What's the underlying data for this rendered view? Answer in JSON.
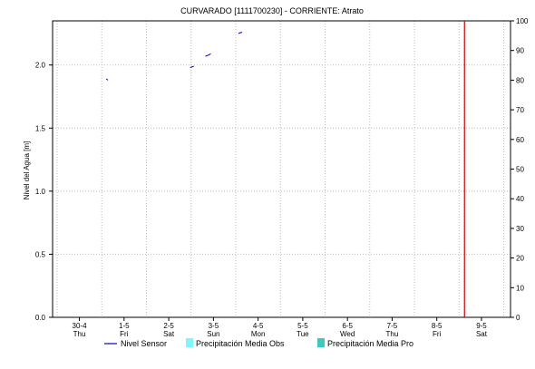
{
  "chart_data": {
    "type": "line",
    "title": "CURVARADO [1111700230] - CORRIENTE: Atrato",
    "ylabel_left": "Nivel del Agua [m]",
    "ylim_left": [
      0,
      2.35
    ],
    "ylim_right": [
      0,
      100
    ],
    "yticks_left": [
      {
        "value": 0.0,
        "label": "0.0"
      },
      {
        "value": 0.5,
        "label": "0.5"
      },
      {
        "value": 1.0,
        "label": "1.0"
      },
      {
        "value": 1.5,
        "label": "1.5"
      },
      {
        "value": 2.0,
        "label": "2.0"
      }
    ],
    "yticks_right": [
      {
        "value": 0,
        "label": "0"
      },
      {
        "value": 10,
        "label": "10"
      },
      {
        "value": 20,
        "label": "20"
      },
      {
        "value": 30,
        "label": "30"
      },
      {
        "value": 40,
        "label": "40"
      },
      {
        "value": 50,
        "label": "50"
      },
      {
        "value": 60,
        "label": "60"
      },
      {
        "value": 70,
        "label": "70"
      },
      {
        "value": 80,
        "label": "80"
      },
      {
        "value": 90,
        "label": "90"
      },
      {
        "value": 100,
        "label": "100"
      }
    ],
    "xlim_days": [
      -0.6,
      9.65
    ],
    "xticks": [
      {
        "day": 0,
        "label1": "30-4",
        "label2": "Thu"
      },
      {
        "day": 1,
        "label1": "1-5",
        "label2": "Fri"
      },
      {
        "day": 2,
        "label1": "2-5",
        "label2": "Sat"
      },
      {
        "day": 3,
        "label1": "3-5",
        "label2": "Sun"
      },
      {
        "day": 4,
        "label1": "4-5",
        "label2": "Mon"
      },
      {
        "day": 5,
        "label1": "5-5",
        "label2": "Tue"
      },
      {
        "day": 6,
        "label1": "6-5",
        "label2": "Wed"
      },
      {
        "day": 7,
        "label1": "7-5",
        "label2": "Thu"
      },
      {
        "day": 8,
        "label1": "8-5",
        "label2": "Fri"
      },
      {
        "day": 9,
        "label1": "9-5",
        "label2": "Sat"
      }
    ],
    "series": [
      {
        "name": "Nivel Sensor",
        "color": "#0000cc",
        "segments": [
          [
            [
              0.6,
              1.89
            ],
            [
              0.64,
              1.88
            ]
          ],
          [
            [
              2.48,
              1.98
            ],
            [
              2.56,
              1.99
            ]
          ],
          [
            [
              2.82,
              2.07
            ],
            [
              2.9,
              2.08
            ],
            [
              2.94,
              2.09
            ]
          ],
          [
            [
              3.56,
              2.25
            ],
            [
              3.64,
              2.26
            ]
          ]
        ]
      },
      {
        "name": "Precipitación Media Obs",
        "color": "#7ff5ff",
        "values": []
      },
      {
        "name": "Precipitación Media Pro",
        "color": "#40c8c0",
        "values": []
      }
    ],
    "current_time_marker": {
      "day": 8.62,
      "color": "#cc0000"
    },
    "grid": true,
    "legend_position": "bottom"
  }
}
